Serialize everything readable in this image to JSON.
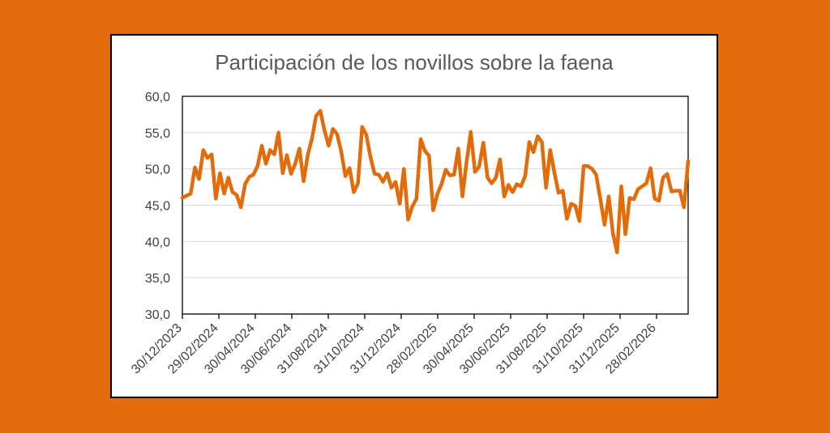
{
  "colors": {
    "background": "#E36C0A",
    "panel": "#FFFFFF",
    "series": "#E36C0A",
    "grid": "#D9D9D9",
    "text": "#595959"
  },
  "chart_data": {
    "type": "line",
    "title": "Participación de los novillos sobre la faena",
    "xlabel": "",
    "ylabel": "",
    "ylim": [
      30,
      60
    ],
    "y_ticks": [
      "30,0",
      "35,0",
      "40,0",
      "45,0",
      "50,0",
      "55,0",
      "60,0"
    ],
    "x_tick_labels": [
      "30/12/2023",
      "29/02/2024",
      "30/04/2024",
      "30/06/2024",
      "31/08/2024",
      "31/10/2024",
      "31/12/2024",
      "28/02/2025",
      "30/04/2025",
      "30/06/2025",
      "31/08/2025",
      "31/10/2025",
      "31/12/2025",
      "28/02/2026"
    ],
    "grid": true,
    "legend": "none",
    "series": [
      {
        "name": "Participación de los novillos",
        "values": [
          46.0,
          46.3,
          46.6,
          50.2,
          48.6,
          52.6,
          51.5,
          52.0,
          45.9,
          49.4,
          46.6,
          48.8,
          46.8,
          46.4,
          44.7,
          47.9,
          48.9,
          49.2,
          50.4,
          53.2,
          50.7,
          52.6,
          52.0,
          55.0,
          49.4,
          51.9,
          49.3,
          50.7,
          52.8,
          48.3,
          51.9,
          54.2,
          57.3,
          58.0,
          55.3,
          53.2,
          55.5,
          54.8,
          52.4,
          49.0,
          50.1,
          46.8,
          48.0,
          55.8,
          54.7,
          51.6,
          49.3,
          49.2,
          48.2,
          49.4,
          47.4,
          48.2,
          45.2,
          50.0,
          43.0,
          44.8,
          45.9,
          54.1,
          52.5,
          51.8,
          44.3,
          46.5,
          47.9,
          49.9,
          49.1,
          49.2,
          52.8,
          46.2,
          51.0,
          55.1,
          49.6,
          50.3,
          53.6,
          48.8,
          48.0,
          48.8,
          51.3,
          46.2,
          47.8,
          46.8,
          47.9,
          47.6,
          49.0,
          53.7,
          52.3,
          54.5,
          53.7,
          47.4,
          52.6,
          49.5,
          46.7,
          47.0,
          43.1,
          45.2,
          44.9,
          42.8,
          50.4,
          50.4,
          50.0,
          49.2,
          45.8,
          42.3,
          46.2,
          41.1,
          38.5,
          47.6,
          41.0,
          46.0,
          45.8,
          47.2,
          47.6,
          48.0,
          50.1,
          45.9,
          45.6,
          48.8,
          49.3,
          46.9,
          47.0,
          47.0,
          44.7,
          51.1
        ]
      }
    ]
  }
}
